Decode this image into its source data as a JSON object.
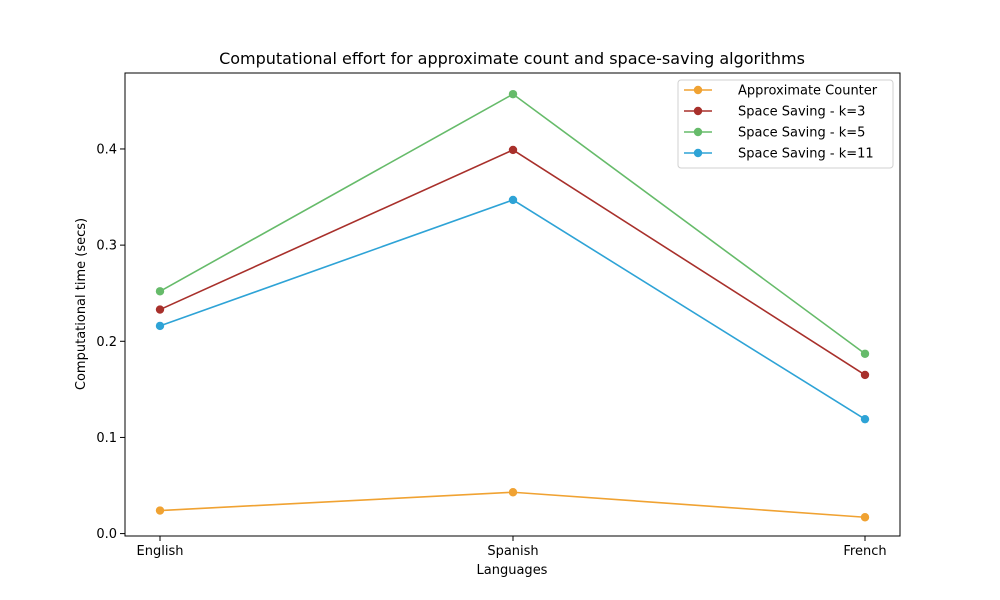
{
  "chart_data": {
    "type": "line",
    "title": "Computational effort for approximate count and space-saving algorithms",
    "xlabel": "Languages",
    "ylabel": "Computational time (secs)",
    "categories": [
      "English",
      "Spanish",
      "French"
    ],
    "ylim": [
      -0.0025,
      0.479
    ],
    "yticks": [
      0.0,
      0.1,
      0.2,
      0.3,
      0.4
    ],
    "ytick_labels": [
      "0.0",
      "0.1",
      "0.2",
      "0.3",
      "0.4"
    ],
    "grid": false,
    "legend_position": "top-right",
    "series": [
      {
        "name": "Approximate Counter",
        "color": "#F0A232",
        "values": [
          0.024,
          0.043,
          0.017
        ]
      },
      {
        "name": "Space Saving - k=3",
        "color": "#A8302B",
        "values": [
          0.233,
          0.399,
          0.165
        ]
      },
      {
        "name": "Space Saving - k=5",
        "color": "#66BB6A",
        "values": [
          0.252,
          0.457,
          0.187
        ]
      },
      {
        "name": "Space Saving - k=11",
        "color": "#2EA3D6",
        "values": [
          0.216,
          0.347,
          0.119
        ]
      }
    ]
  }
}
